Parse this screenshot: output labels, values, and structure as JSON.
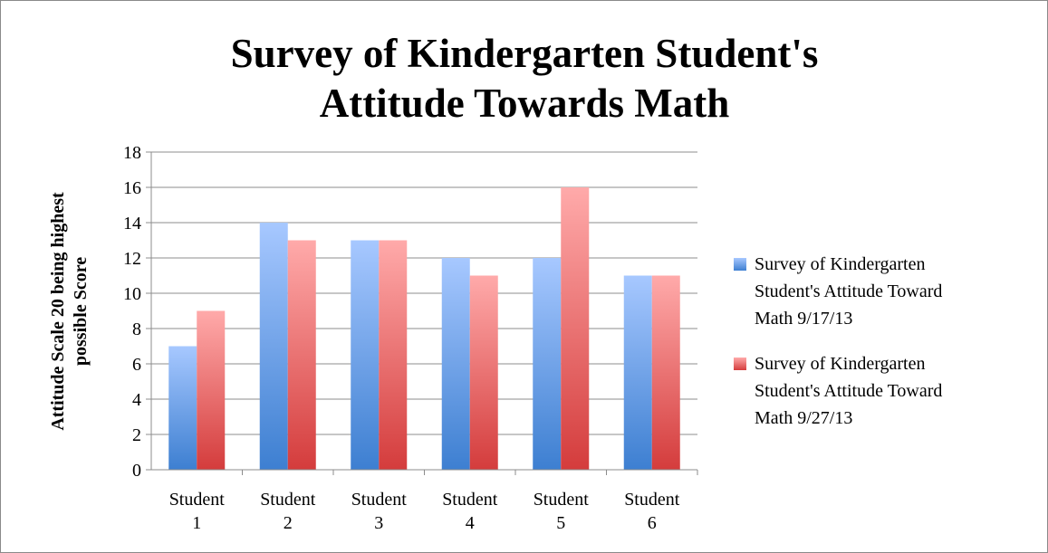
{
  "chart_data": {
    "type": "bar",
    "title_lines": [
      "Survey of Kindergarten Student's",
      "Attitude Towards Math"
    ],
    "ylabel_lines": [
      "Attitude Scale 20 being highest",
      "possible Score"
    ],
    "xlabel": "",
    "categories": [
      [
        "Student",
        "1"
      ],
      [
        "Student",
        "2"
      ],
      [
        "Student",
        "3"
      ],
      [
        "Student",
        "4"
      ],
      [
        "Student",
        "5"
      ],
      [
        "Student",
        "6"
      ]
    ],
    "ylim": [
      0,
      18
    ],
    "yticks": [
      0,
      2,
      4,
      6,
      8,
      10,
      12,
      14,
      16,
      18
    ],
    "grid": true,
    "legend_position": "right",
    "series": [
      {
        "name_lines": [
          "Survey of Kindergarten",
          "Student's Attitude Toward",
          "Math 9/17/13"
        ],
        "values": [
          7,
          14,
          13,
          12,
          12,
          11
        ],
        "color_top": "#a7c8ff",
        "color_bottom": "#3d7fd1"
      },
      {
        "name_lines": [
          "Survey of Kindergarten",
          "Student's Attitude Toward",
          "Math 9/27/13"
        ],
        "values": [
          9,
          13,
          13,
          11,
          16,
          11
        ],
        "color_top": "#ffaaaa",
        "color_bottom": "#d43c3c"
      }
    ]
  }
}
